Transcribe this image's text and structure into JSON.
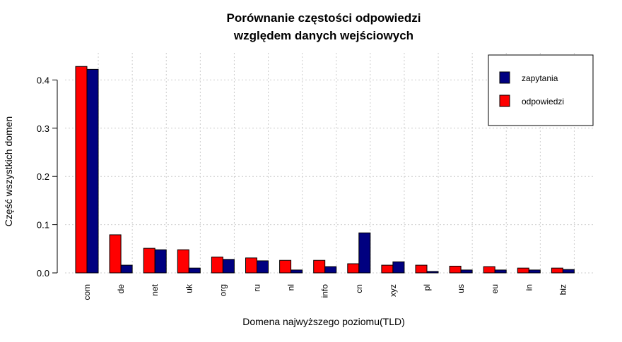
{
  "chart_data": {
    "type": "bar",
    "title_line1": "Porównanie częstości odpowiedzi",
    "title_line2": "względem danych wejściowych",
    "xlabel": "Domena najwyższego poziomu(TLD)",
    "ylabel": "Część wszystkich domen",
    "ylim": [
      0,
      0.44
    ],
    "yticks": [
      "0.0",
      "0.1",
      "0.2",
      "0.3",
      "0.4"
    ],
    "grid": true,
    "legend_position": "top-right",
    "categories": [
      "com",
      "de",
      "net",
      "uk",
      "org",
      "ru",
      "nl",
      "info",
      "cn",
      "xyz",
      "pl",
      "us",
      "eu",
      "in",
      "biz"
    ],
    "series": [
      {
        "name": "odpowiedzi",
        "color": "#ff0000",
        "values": [
          0.428,
          0.079,
          0.051,
          0.048,
          0.033,
          0.031,
          0.026,
          0.026,
          0.019,
          0.016,
          0.016,
          0.014,
          0.013,
          0.01,
          0.01
        ]
      },
      {
        "name": "zapytania",
        "color": "#000080",
        "values": [
          0.422,
          0.016,
          0.048,
          0.01,
          0.028,
          0.025,
          0.006,
          0.013,
          0.083,
          0.023,
          0.003,
          0.006,
          0.006,
          0.006,
          0.007
        ]
      }
    ],
    "legend_order": [
      "zapytania",
      "odpowiedzi"
    ]
  }
}
